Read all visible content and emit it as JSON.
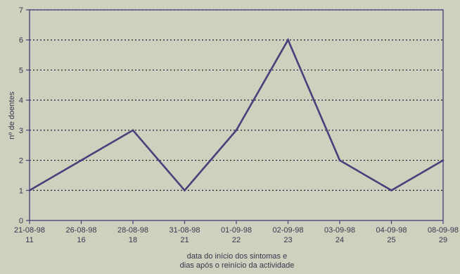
{
  "chart_data": {
    "type": "line",
    "title": "",
    "xlabel_lines": [
      "data do início dos sintomas e",
      "dias após o reinício da actividade"
    ],
    "ylabel": "nº de doentes",
    "ylim": [
      0,
      7
    ],
    "y_ticks": [
      "0",
      "1",
      "2",
      "3",
      "4",
      "5",
      "6",
      "7"
    ],
    "categories": [
      {
        "date": "21-08-98",
        "day": "11"
      },
      {
        "date": "26-08-98",
        "day": "16"
      },
      {
        "date": "28-08-98",
        "day": "18"
      },
      {
        "date": "31-08-98",
        "day": "21"
      },
      {
        "date": "01-09-98",
        "day": "22"
      },
      {
        "date": "02-09-98",
        "day": "23"
      },
      {
        "date": "03-09-98",
        "day": "24"
      },
      {
        "date": "04-09-98",
        "day": "25"
      },
      {
        "date": "08-09-98",
        "day": "29"
      }
    ],
    "values": [
      1,
      2,
      3,
      1,
      3,
      6,
      2,
      1,
      2
    ],
    "grid": "horizontal dotted",
    "line_color": "#4b3f7c",
    "axis_color": "#4b3f7c"
  }
}
